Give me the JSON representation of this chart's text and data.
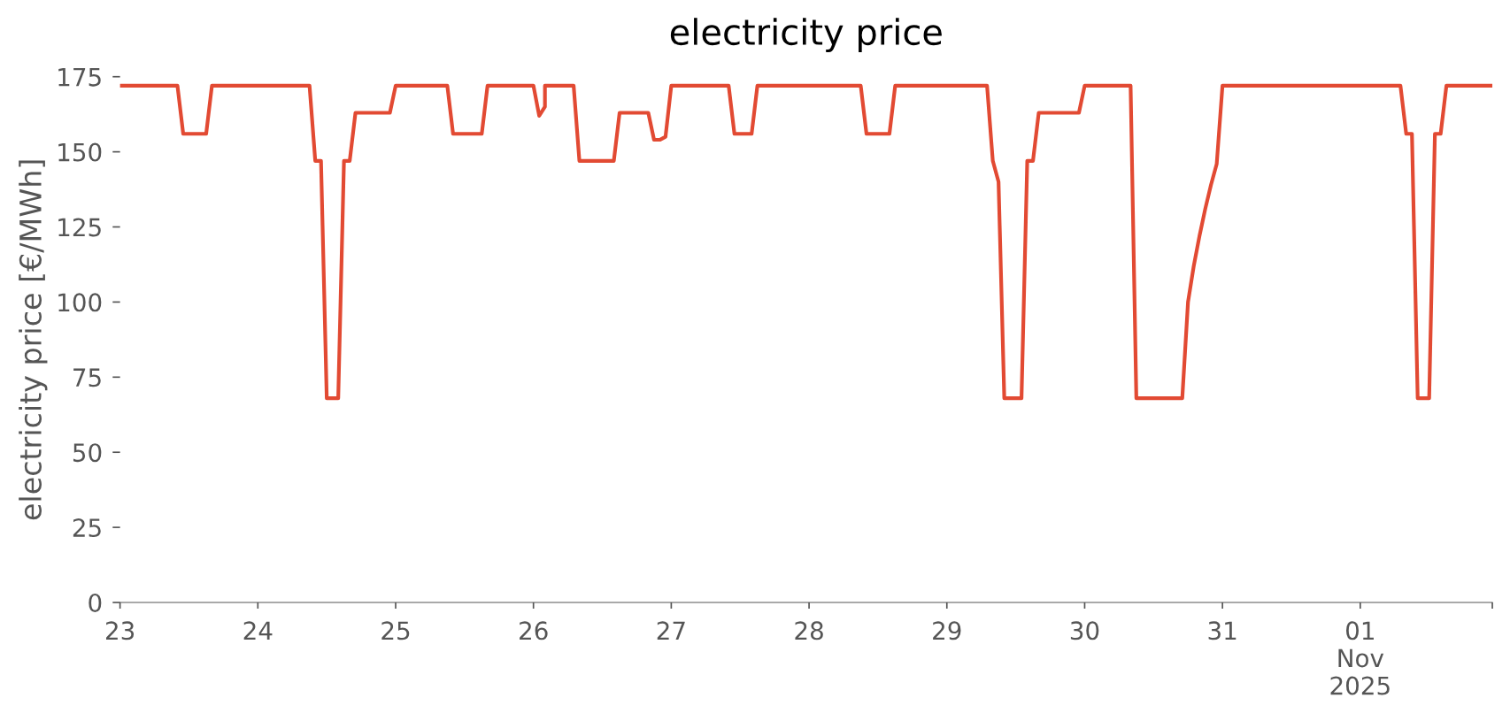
{
  "chart_data": {
    "type": "line",
    "title": "electricity price",
    "ylabel": "electricity price [€/MWh]",
    "xlim": [
      "2025-10-23T00:00",
      "2025-11-01T23:00"
    ],
    "xticks": [
      {
        "value": "2025-10-23T00:00",
        "label": "23"
      },
      {
        "value": "2025-10-24T00:00",
        "label": "24"
      },
      {
        "value": "2025-10-25T00:00",
        "label": "25"
      },
      {
        "value": "2025-10-26T00:00",
        "label": "26"
      },
      {
        "value": "2025-10-27T00:00",
        "label": "27"
      },
      {
        "value": "2025-10-28T00:00",
        "label": "28"
      },
      {
        "value": "2025-10-29T00:00",
        "label": "29"
      },
      {
        "value": "2025-10-30T00:00",
        "label": "30"
      },
      {
        "value": "2025-10-31T00:00",
        "label": "31"
      },
      {
        "value": "2025-11-01T00:00",
        "label": "01\nNov\n2025"
      },
      {
        "value": "2025-11-01T23:00",
        "label": null
      }
    ],
    "ylim": [
      0,
      175
    ],
    "yticks": [
      0,
      25,
      50,
      75,
      100,
      125,
      150,
      175
    ],
    "grid": false,
    "x": [
      "2025-10-23T00:00",
      "2025-10-23T10:00",
      "2025-10-23T11:00",
      "2025-10-23T15:00",
      "2025-10-23T16:00",
      "2025-10-24T09:00",
      "2025-10-24T10:00",
      "2025-10-24T11:00",
      "2025-10-24T12:00",
      "2025-10-24T14:00",
      "2025-10-24T15:00",
      "2025-10-24T16:00",
      "2025-10-24T17:00",
      "2025-10-24T23:00",
      "2025-10-25T00:00",
      "2025-10-25T09:00",
      "2025-10-25T10:00",
      "2025-10-25T15:00",
      "2025-10-25T16:00",
      "2025-10-26T00:00",
      "2025-10-26T01:00",
      "2025-10-26T02:00",
      "2025-10-26T02:00",
      "2025-10-26T07:00",
      "2025-10-26T08:00",
      "2025-10-26T14:00",
      "2025-10-26T15:00",
      "2025-10-26T20:00",
      "2025-10-26T21:00",
      "2025-10-26T22:00",
      "2025-10-26T23:00",
      "2025-10-27T00:00",
      "2025-10-27T10:00",
      "2025-10-27T11:00",
      "2025-10-27T14:00",
      "2025-10-27T15:00",
      "2025-10-28T09:00",
      "2025-10-28T10:00",
      "2025-10-28T14:00",
      "2025-10-28T15:00",
      "2025-10-29T07:00",
      "2025-10-29T08:00",
      "2025-10-29T09:00",
      "2025-10-29T10:00",
      "2025-10-29T13:00",
      "2025-10-29T14:00",
      "2025-10-29T15:00",
      "2025-10-29T16:00",
      "2025-10-29T23:00",
      "2025-10-30T00:00",
      "2025-10-30T08:00",
      "2025-10-30T09:00",
      "2025-10-30T17:00",
      "2025-10-30T18:00",
      "2025-10-30T19:00",
      "2025-10-30T20:00",
      "2025-10-30T21:00",
      "2025-10-30T22:00",
      "2025-10-30T23:00",
      "2025-10-31T00:00",
      "2025-11-01T07:00",
      "2025-11-01T08:00",
      "2025-11-01T09:00",
      "2025-11-01T10:00",
      "2025-11-01T12:00",
      "2025-11-01T13:00",
      "2025-11-01T14:00",
      "2025-11-01T15:00",
      "2025-11-01T23:00"
    ],
    "series": [
      {
        "color": "#e24a33",
        "values": [
          172,
          172,
          156,
          156,
          172,
          172,
          147,
          147,
          68,
          68,
          147,
          147,
          163,
          163,
          172,
          172,
          156,
          156,
          172,
          172,
          162,
          165,
          172,
          172,
          147,
          147,
          163,
          163,
          154,
          154,
          155,
          172,
          172,
          156,
          156,
          172,
          172,
          156,
          156,
          172,
          172,
          147,
          140,
          68,
          68,
          147,
          147,
          163,
          163,
          172,
          172,
          68,
          68,
          100,
          112,
          122,
          131,
          139,
          146,
          172,
          172,
          156,
          156,
          68,
          68,
          156,
          156,
          172,
          172
        ]
      }
    ]
  }
}
